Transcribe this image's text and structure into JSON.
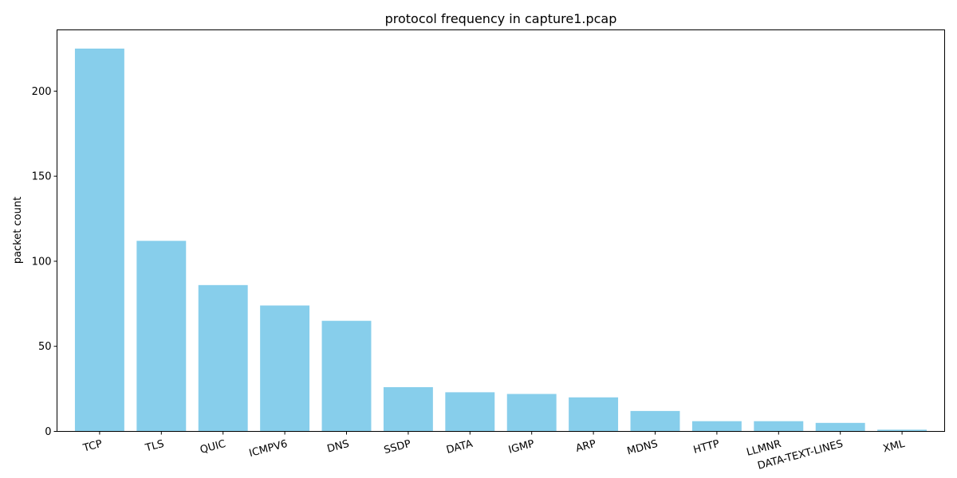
{
  "chart_data": {
    "type": "bar",
    "title": "protocol frequency in capture1.pcap",
    "xlabel": "",
    "ylabel": "packet count",
    "categories": [
      "TCP",
      "TLS",
      "QUIC",
      "ICMPV6",
      "DNS",
      "SSDP",
      "DATA",
      "IGMP",
      "ARP",
      "MDNS",
      "HTTP",
      "LLMNR",
      "DATA-TEXT-LINES",
      "XML"
    ],
    "values": [
      225,
      112,
      86,
      74,
      65,
      26,
      23,
      22,
      20,
      12,
      6,
      6,
      5,
      1
    ],
    "ylim": [
      0,
      236
    ],
    "yticks": [
      0,
      50,
      100,
      150,
      200
    ],
    "xtick_rotation_deg": 15,
    "grid": false,
    "bar_color": "#87ceeb"
  }
}
